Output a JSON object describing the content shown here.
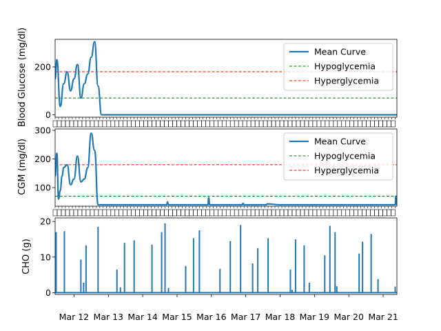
{
  "chart_data": [
    {
      "type": "line",
      "ylabel": "Blood Glucose (mg/dl)",
      "ylim": [
        -10,
        315
      ],
      "yticks": [
        0,
        200
      ],
      "xlim": [
        11.45,
        21.4
      ],
      "x_tick_labels": "overlapping unreadable day ticks",
      "series": [
        {
          "name": "Mean Curve",
          "color": "#1f77b4",
          "x": [
            11.45,
            11.5,
            11.6,
            11.7,
            11.8,
            11.9,
            12.0,
            12.1,
            12.2,
            12.3,
            12.4,
            12.5,
            12.6,
            12.7,
            12.8,
            12.85,
            12.95,
            13.0,
            13.1,
            13.2,
            14.0,
            15.0,
            16.0,
            17.0,
            18.0,
            19.0,
            20.0,
            21.0,
            21.4
          ],
          "y": [
            150,
            230,
            35,
            130,
            180,
            100,
            150,
            210,
            70,
            130,
            170,
            240,
            305,
            120,
            0,
            0,
            0,
            0,
            0,
            0,
            0,
            0,
            0,
            0,
            0,
            0,
            0,
            0,
            0
          ]
        }
      ],
      "hlines": [
        {
          "name": "Hypoglycemia",
          "y": 70,
          "color": "#008000",
          "dashed": true
        },
        {
          "name": "Hyperglycemia",
          "y": 180,
          "color": "#ff0000",
          "dashed": true
        }
      ],
      "legend": "top-right"
    },
    {
      "type": "line",
      "ylabel": "CGM (mg/dl)",
      "ylim": [
        35,
        305
      ],
      "yticks": [
        100,
        200,
        300
      ],
      "xlim": [
        11.45,
        21.4
      ],
      "x_tick_labels": "overlapping unreadable day ticks",
      "series": [
        {
          "name": "Mean Curve",
          "color": "#1f77b4",
          "x": [
            11.45,
            11.5,
            11.55,
            11.6,
            11.65,
            11.7,
            11.8,
            11.9,
            12.0,
            12.1,
            12.2,
            12.3,
            12.4,
            12.5,
            12.6,
            12.7,
            12.8,
            12.85,
            13.0,
            13.5,
            14.0,
            14.7,
            14.72,
            14.75,
            15.0,
            15.9,
            15.92,
            15.95,
            16.5,
            16.9,
            16.92,
            16.95,
            17.5,
            17.6,
            17.62,
            18.0,
            19.0,
            20.0,
            21.0,
            21.35,
            21.37,
            21.4
          ],
          "y": [
            140,
            220,
            60,
            90,
            140,
            170,
            180,
            110,
            130,
            210,
            120,
            130,
            170,
            290,
            230,
            40,
            40,
            40,
            40,
            40,
            40,
            40,
            50,
            40,
            40,
            40,
            65,
            40,
            40,
            40,
            45,
            40,
            40,
            40,
            43,
            40,
            40,
            40,
            40,
            40,
            70,
            40
          ]
        }
      ],
      "hlines": [
        {
          "name": "Hypoglycemia",
          "y": 70,
          "color": "#008000",
          "dashed": true
        },
        {
          "name": "Hyperglycemia",
          "y": 180,
          "color": "#ff0000",
          "dashed": true
        }
      ],
      "legend": "top-right"
    },
    {
      "type": "bar",
      "ylabel": "CHO (g)",
      "ylim": [
        -0.5,
        21
      ],
      "yticks": [
        0,
        10,
        20
      ],
      "xlim": [
        11.45,
        21.4
      ],
      "x_tick_labels": [
        "Mar 12",
        "Mar 13",
        "Mar 14",
        "Mar 15",
        "Mar 16",
        "Mar 17",
        "Mar 18",
        "Mar 19",
        "Mar 20",
        "Mar 21"
      ],
      "x_tick_positions": [
        12,
        13,
        14,
        15,
        16,
        17,
        18,
        19,
        20,
        21
      ],
      "series": [
        {
          "name": "CHO",
          "color": "#1f77b4",
          "x": [
            11.48,
            11.72,
            12.2,
            12.28,
            12.35,
            12.7,
            13.25,
            13.35,
            13.47,
            13.75,
            14.27,
            14.55,
            14.65,
            14.75,
            15.25,
            15.48,
            15.65,
            16.25,
            16.55,
            16.85,
            17.2,
            17.35,
            17.65,
            18.3,
            18.35,
            18.45,
            18.7,
            18.85,
            19.3,
            19.45,
            19.6,
            19.65,
            20.3,
            20.4,
            20.65,
            20.85,
            21.35
          ],
          "values": [
            17,
            17.3,
            9.3,
            2.8,
            13.3,
            18.5,
            6.5,
            1.5,
            14,
            14.7,
            13.5,
            17,
            19.5,
            1.3,
            7.5,
            15.3,
            17.5,
            6.7,
            14.5,
            19,
            8.2,
            12.5,
            15.3,
            6.5,
            0.8,
            15,
            13.3,
            2.8,
            10.5,
            18.8,
            17,
            1.8,
            11,
            14.3,
            16.5,
            3.8,
            1.7
          ]
        }
      ]
    }
  ]
}
